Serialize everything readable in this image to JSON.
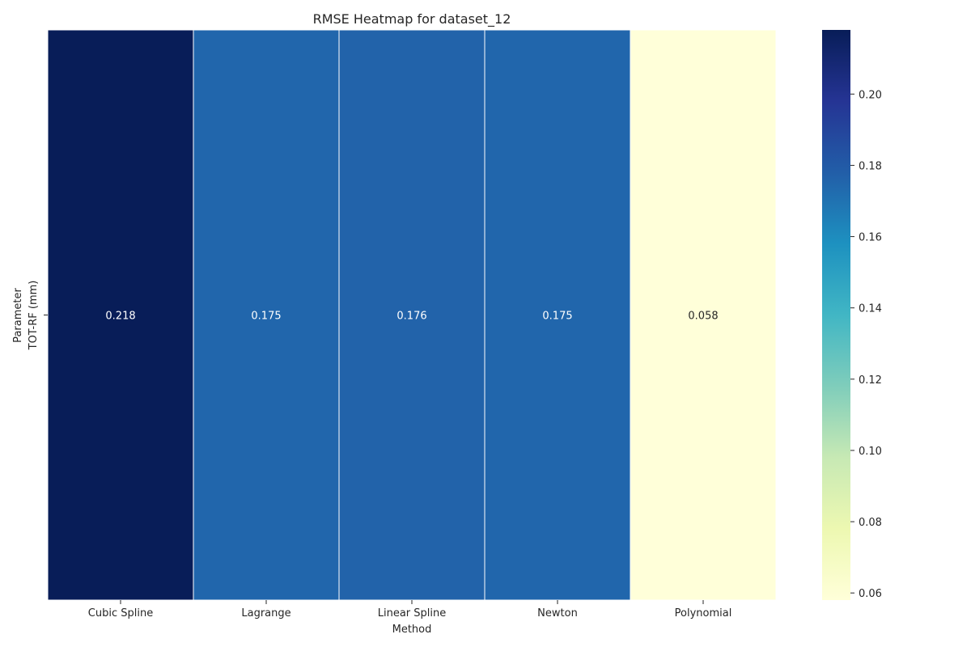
{
  "chart_data": {
    "type": "heatmap",
    "title": "RMSE Heatmap for dataset_12",
    "xlabel": "Method",
    "ylabel": "Parameter",
    "x_categories": [
      "Cubic Spline",
      "Lagrange",
      "Linear Spline",
      "Newton",
      "Polynomial"
    ],
    "y_categories": [
      "TOT-RF (mm)"
    ],
    "values": [
      [
        0.218,
        0.175,
        0.176,
        0.175,
        0.058
      ]
    ],
    "value_labels": [
      [
        "0.218",
        "0.175",
        "0.176",
        "0.175",
        "0.058"
      ]
    ],
    "colorbar": {
      "range": [
        0.058,
        0.218
      ],
      "ticks": [
        0.06,
        0.08,
        0.1,
        0.12,
        0.14,
        0.16,
        0.18,
        0.2
      ],
      "tick_labels": [
        "0.06",
        "0.08",
        "0.10",
        "0.12",
        "0.14",
        "0.16",
        "0.18",
        "0.20"
      ],
      "colormap": "YlGnBu",
      "colormap_stops": [
        "#ffffd9",
        "#edf8b1",
        "#c7e9b4",
        "#7fcdbb",
        "#41b6c4",
        "#1d91c0",
        "#225ea8",
        "#253494",
        "#081d58"
      ]
    },
    "grid": false,
    "legend": "none"
  }
}
